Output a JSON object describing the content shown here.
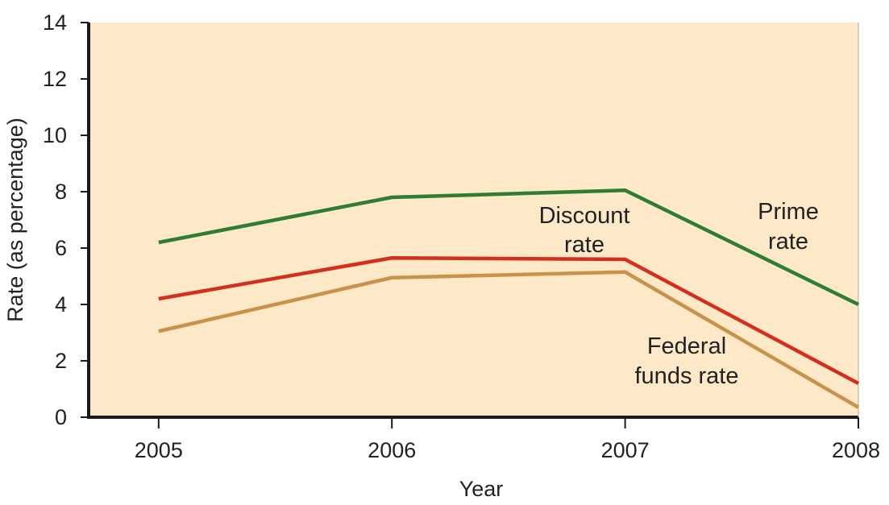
{
  "chart_data": {
    "type": "line",
    "xlabel": "Year",
    "ylabel": "Rate (as percentage)",
    "x": [
      2005,
      2006,
      2007,
      2008
    ],
    "x_tick_labels": [
      "2005",
      "2006",
      "2007",
      "2008"
    ],
    "y_ticks": [
      0,
      2,
      4,
      6,
      8,
      10,
      12,
      14
    ],
    "y_tick_labels": [
      "0",
      "2",
      "4",
      "6",
      "8",
      "10",
      "12",
      "14"
    ],
    "ylim": [
      0,
      14
    ],
    "xlim": [
      2004.7,
      2008
    ],
    "grid": false,
    "legend": "none",
    "series": [
      {
        "name": "Prime rate",
        "values": [
          6.2,
          7.8,
          8.05,
          4.0
        ],
        "color": "#2e7d32",
        "label_lines": [
          "Prime",
          "rate"
        ]
      },
      {
        "name": "Discount rate",
        "values": [
          4.2,
          5.65,
          5.6,
          1.2
        ],
        "color": "#d32f1f",
        "label_lines": [
          "Discount",
          "rate"
        ]
      },
      {
        "name": "Federal funds rate",
        "values": [
          3.05,
          4.95,
          5.15,
          0.35
        ],
        "color": "#c8924a",
        "label_lines": [
          "Federal",
          "funds rate"
        ]
      }
    ],
    "plot_background": "#fde9c7"
  }
}
